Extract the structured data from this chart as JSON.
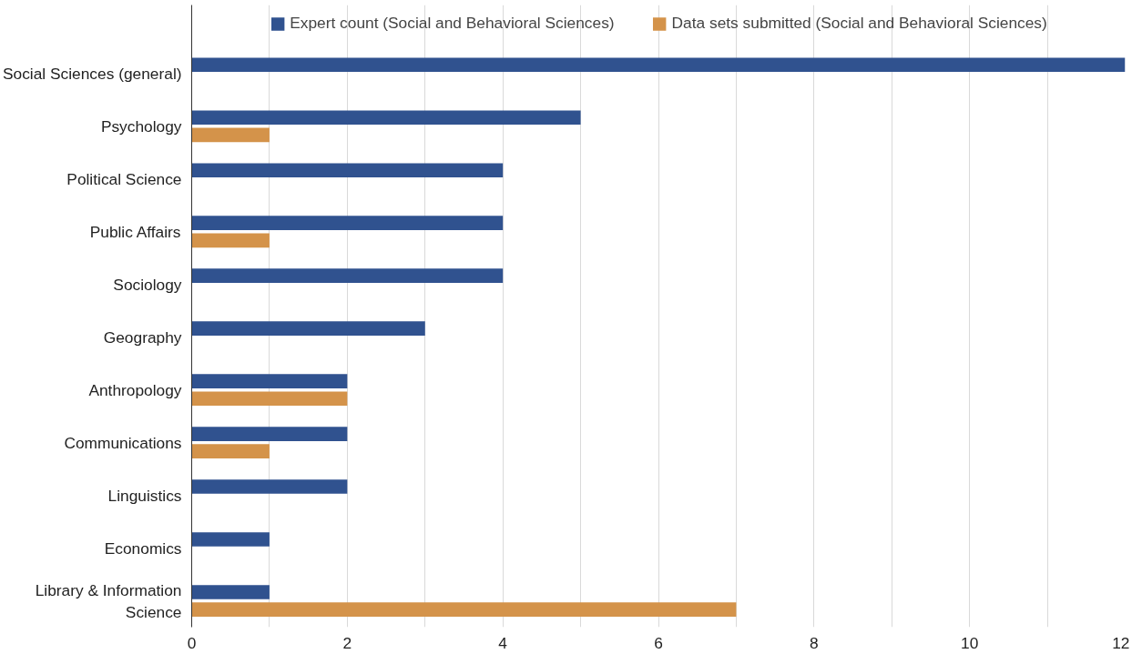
{
  "chart_data": {
    "type": "bar",
    "orientation": "horizontal",
    "categories": [
      "Social Sciences (general)",
      "Psychology",
      "Political Science",
      "Public Affairs",
      "Sociology",
      "Geography",
      "Anthropology",
      "Communications",
      "Linguistics",
      "Economics",
      "Library & Information Science"
    ],
    "series": [
      {
        "name": "Expert count (Social and Behavioral Sciences)",
        "color": "#30528f",
        "values": [
          12,
          5,
          4,
          4,
          4,
          3,
          2,
          2,
          2,
          1,
          1
        ]
      },
      {
        "name": "Data sets submitted (Social and Behavioral Sciences)",
        "color": "#d4934a",
        "values": [
          null,
          1,
          null,
          1,
          null,
          null,
          2,
          1,
          null,
          null,
          7
        ]
      }
    ],
    "xlim": [
      0,
      12
    ],
    "xticks": [
      0,
      {
        "value": 1,
        "label": null
      },
      2,
      {
        "value": 3,
        "label": null
      },
      4,
      {
        "value": 5,
        "label": null
      },
      6,
      {
        "value": 7,
        "label": null
      },
      8,
      {
        "value": 9,
        "label": null
      },
      10,
      {
        "value": 11,
        "label": null
      },
      12
    ],
    "grid": "x",
    "legend": "top"
  }
}
